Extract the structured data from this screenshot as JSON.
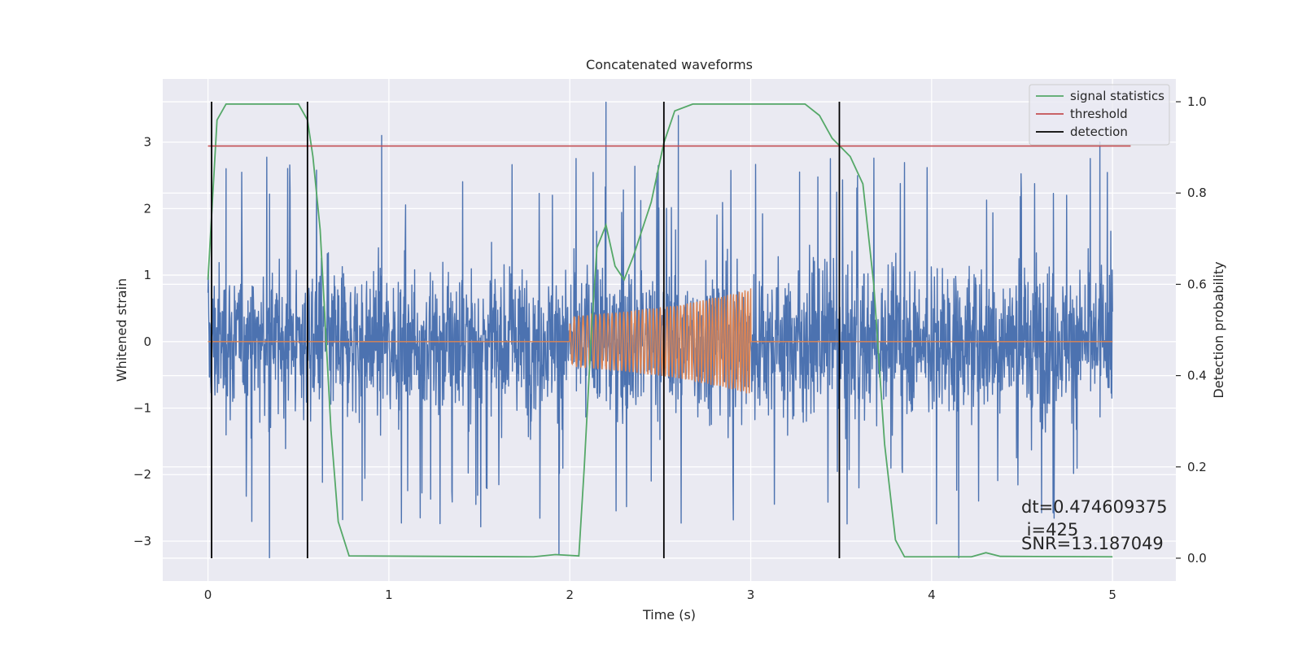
{
  "chart_data": {
    "type": "line",
    "title": "Concatenated waveforms",
    "xlabel": "Time (s)",
    "ylabel": "Whitened strain",
    "y2label": "Detection probability",
    "xlim": [
      -0.25,
      5.35
    ],
    "ylim": [
      -3.6,
      3.95
    ],
    "y2lim": [
      -0.05,
      1.05
    ],
    "x_ticks": [
      0,
      1,
      2,
      3,
      4,
      5
    ],
    "y_ticks": [
      -3,
      -2,
      -1,
      0,
      1,
      2,
      3
    ],
    "y2_ticks": [
      0.0,
      0.2,
      0.4,
      0.6,
      0.8,
      1.0
    ],
    "x_tick_labels": [
      "0",
      "1",
      "2",
      "3",
      "4",
      "5"
    ],
    "y_tick_labels": [
      "−3",
      "−2",
      "−1",
      "0",
      "1",
      "2",
      "3"
    ],
    "y2_tick_labels": [
      "0.0",
      "0.2",
      "0.4",
      "0.6",
      "0.8",
      "1.0"
    ],
    "grid": true,
    "legend_position": "top-right",
    "series": [
      {
        "name": "",
        "color": "#4c72b0",
        "description_of_values": "whitened noise strain, 0 to 5 s, amplitude mostly within ±1, peaks to about ±3",
        "x_range": [
          0,
          5
        ],
        "peak_points": [
          {
            "x": 0.1,
            "y": 2.6
          },
          {
            "x": 0.34,
            "y": -3.25
          },
          {
            "x": 0.96,
            "y": 3.1
          },
          {
            "x": 1.94,
            "y": -3.2
          },
          {
            "x": 2.2,
            "y": 3.6
          },
          {
            "x": 2.6,
            "y": 3.4
          },
          {
            "x": 3.27,
            "y": 2.55
          },
          {
            "x": 4.15,
            "y": -3.25
          },
          {
            "x": 4.93,
            "y": 3.0
          }
        ]
      },
      {
        "name": "",
        "color": "#dd8452",
        "description_of_values": "injected chirp signal between 2.0 s and 3.0 s, zero elsewhere",
        "points": [
          {
            "x": 0.0,
            "y": 0.0
          },
          {
            "x": 1.95,
            "y": 0.0
          },
          {
            "x": 2.02,
            "y": 0.38
          },
          {
            "x": 2.3,
            "y": 0.45
          },
          {
            "x": 2.6,
            "y": 0.55
          },
          {
            "x": 2.9,
            "y": 0.72
          },
          {
            "x": 3.0,
            "y": 0.8
          },
          {
            "x": 3.01,
            "y": 0.0
          },
          {
            "x": 5.0,
            "y": 0.0
          }
        ]
      },
      {
        "name": "signal statistics",
        "color": "#55a868",
        "axis": "right",
        "points": [
          {
            "x": 0.0,
            "y": 0.61
          },
          {
            "x": 0.03,
            "y": 0.82
          },
          {
            "x": 0.05,
            "y": 0.96
          },
          {
            "x": 0.1,
            "y": 0.995
          },
          {
            "x": 0.5,
            "y": 0.995
          },
          {
            "x": 0.55,
            "y": 0.96
          },
          {
            "x": 0.58,
            "y": 0.88
          },
          {
            "x": 0.62,
            "y": 0.72
          },
          {
            "x": 0.68,
            "y": 0.28
          },
          {
            "x": 0.72,
            "y": 0.08
          },
          {
            "x": 0.78,
            "y": 0.005
          },
          {
            "x": 1.8,
            "y": 0.003
          },
          {
            "x": 1.92,
            "y": 0.008
          },
          {
            "x": 2.05,
            "y": 0.005
          },
          {
            "x": 2.08,
            "y": 0.2
          },
          {
            "x": 2.12,
            "y": 0.5
          },
          {
            "x": 2.15,
            "y": 0.68
          },
          {
            "x": 2.2,
            "y": 0.73
          },
          {
            "x": 2.25,
            "y": 0.64
          },
          {
            "x": 2.3,
            "y": 0.61
          },
          {
            "x": 2.35,
            "y": 0.66
          },
          {
            "x": 2.45,
            "y": 0.78
          },
          {
            "x": 2.52,
            "y": 0.91
          },
          {
            "x": 2.58,
            "y": 0.98
          },
          {
            "x": 2.68,
            "y": 0.995
          },
          {
            "x": 3.3,
            "y": 0.995
          },
          {
            "x": 3.38,
            "y": 0.97
          },
          {
            "x": 3.45,
            "y": 0.92
          },
          {
            "x": 3.55,
            "y": 0.88
          },
          {
            "x": 3.62,
            "y": 0.82
          },
          {
            "x": 3.68,
            "y": 0.6
          },
          {
            "x": 3.74,
            "y": 0.25
          },
          {
            "x": 3.8,
            "y": 0.04
          },
          {
            "x": 3.85,
            "y": 0.003
          },
          {
            "x": 4.22,
            "y": 0.003
          },
          {
            "x": 4.3,
            "y": 0.012
          },
          {
            "x": 4.38,
            "y": 0.004
          },
          {
            "x": 5.0,
            "y": 0.003
          }
        ]
      },
      {
        "name": "threshold",
        "color": "#c44e52",
        "axis": "right",
        "points": [
          {
            "x": 0.0,
            "y": 0.903
          },
          {
            "x": 5.1,
            "y": 0.903
          }
        ]
      },
      {
        "name": "detection",
        "color": "#000000",
        "axis": "right",
        "vertical_lines_x": [
          0.02,
          0.55,
          2.52,
          3.49
        ],
        "y_span": [
          0.0,
          1.0
        ]
      }
    ],
    "legend": [
      "signal statistics",
      "threshold",
      "detection"
    ],
    "annotations": [
      "dt=0.474609375",
      " i=425",
      "SNR=13.187049"
    ]
  }
}
